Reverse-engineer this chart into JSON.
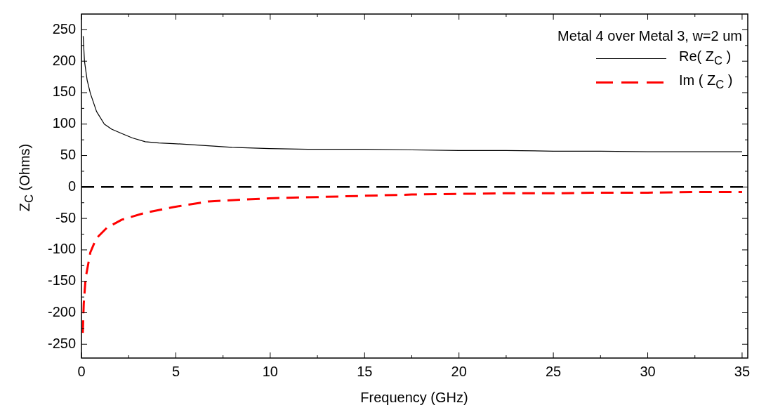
{
  "chart_data": {
    "type": "line",
    "xlabel": "Frequency (GHz)",
    "ylabel": "Z$_{C}$ (Ohms)",
    "legend_title": "Metal 4 over Metal 3, w=2 um",
    "legend": "top right",
    "marker": "none",
    "grid": false,
    "xlim": [
      0,
      35.3
    ],
    "xticks": [
      0,
      5,
      10,
      15,
      20,
      25,
      30,
      35
    ],
    "ylim": [
      -272,
      275
    ],
    "yticks": [
      -250,
      -200,
      -150,
      -100,
      -50,
      0,
      50,
      100,
      150,
      200,
      250
    ],
    "ref_lines": [
      {
        "axis": "y",
        "value": 0,
        "color": "#000000",
        "line_style": "dashed"
      }
    ],
    "series": [
      {
        "name": "Re( Z$_{C}$ )",
        "color": "#000000",
        "line_style": "solid",
        "x": [
          0.09,
          0.16,
          0.3,
          0.47,
          0.8,
          1.21,
          1.6,
          2.14,
          2.7,
          3.38,
          4.1,
          4.87,
          6,
          7,
          7.97,
          9.95,
          12,
          15,
          17.5,
          20,
          22.5,
          25,
          27.5,
          30,
          32.5,
          35
        ],
        "values": [
          240,
          200,
          170,
          149,
          120,
          100,
          92,
          85,
          78,
          72,
          70,
          69,
          67,
          65,
          63,
          61,
          60,
          60,
          59,
          58,
          58,
          57,
          57,
          56,
          56,
          56
        ]
      },
      {
        "name": "Im ( Z$_{C}$ )",
        "color": "#ff0000",
        "line_style": "dashed",
        "x": [
          0.07,
          0.12,
          0.22,
          0.47,
          0.78,
          1.34,
          2.14,
          3.38,
          4.87,
          6.73,
          9.95,
          12.5,
          15,
          17.5,
          20,
          22.5,
          25,
          27.5,
          30,
          32.5,
          35
        ],
        "values": [
          -232,
          -186,
          -145,
          -104,
          -82,
          -65,
          -52,
          -41,
          -32,
          -23,
          -18,
          -16,
          -14,
          -12,
          -11,
          -10,
          -10,
          -9,
          -9,
          -8,
          -8
        ]
      }
    ]
  }
}
